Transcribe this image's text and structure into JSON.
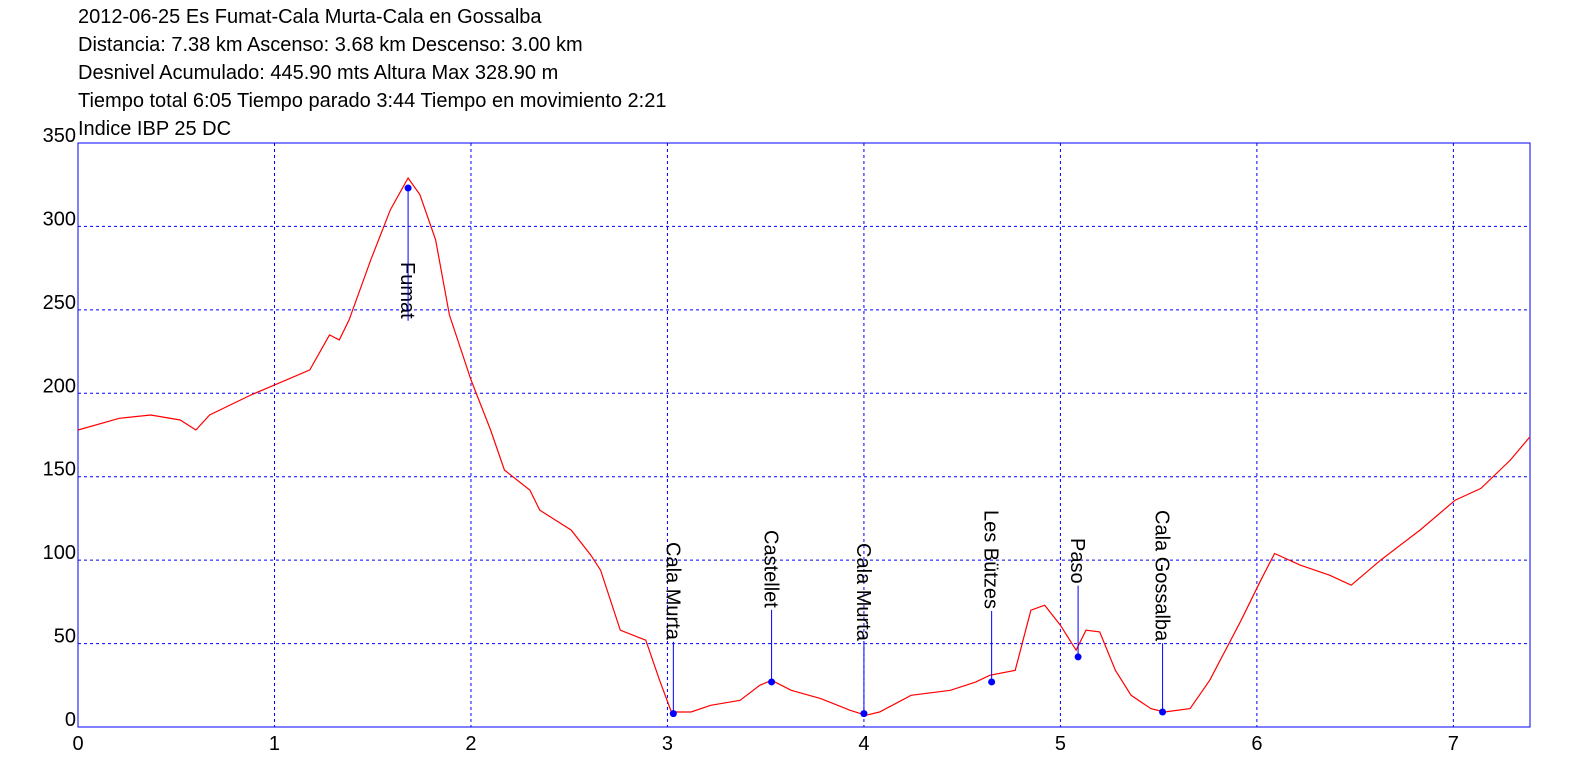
{
  "chart_data": {
    "type": "line",
    "title_lines": [
      "2012-06-25 Es Fumat-Cala Murta-Cala en Gossalba",
      "Distancia: 7.38 km Ascenso: 3.68 km Descenso: 3.00 km",
      "Desnivel Acumulado: 445.90 mts  Altura Max 328.90 m",
      "Tiempo total 6:05 Tiempo parado 3:44 Tiempo en movimiento 2:21",
      "Indice IBP 25 DC"
    ],
    "xlim": [
      0,
      7.39
    ],
    "ylim": [
      0,
      350
    ],
    "xticks": [
      0,
      1,
      2,
      3,
      4,
      5,
      6,
      7
    ],
    "yticks": [
      0,
      50,
      100,
      150,
      200,
      250,
      300,
      350
    ],
    "grid": true,
    "grid_color": "#0000ff",
    "axis_color": "#0000ff",
    "series": [
      {
        "color": "#ff0000",
        "x": [
          0,
          0.21,
          0.37,
          0.52,
          0.6,
          0.67,
          0.88,
          1.08,
          1.18,
          1.28,
          1.33,
          1.38,
          1.49,
          1.59,
          1.68,
          1.74,
          1.82,
          1.89,
          2.0,
          2.1,
          2.17,
          2.3,
          2.35,
          2.51,
          2.61,
          2.66,
          2.76,
          2.89,
          2.96,
          3.02,
          3.12,
          3.22,
          3.37,
          3.47,
          3.53,
          3.63,
          3.78,
          3.93,
          4.01,
          4.08,
          4.24,
          4.44,
          4.57,
          4.64,
          4.77,
          4.85,
          4.92,
          5.0,
          5.08,
          5.13,
          5.2,
          5.28,
          5.36,
          5.46,
          5.53,
          5.66,
          5.76,
          5.92,
          6.02,
          6.09,
          6.22,
          6.37,
          6.48,
          6.63,
          6.83,
          7.01,
          7.14,
          7.29,
          7.39
        ],
        "values": [
          178,
          185,
          187,
          184,
          178,
          187,
          199,
          209,
          214,
          235,
          232,
          244,
          280,
          310,
          329,
          319,
          292,
          247,
          208,
          178,
          154,
          142,
          130,
          118,
          103,
          94,
          58,
          52,
          28,
          9,
          9,
          13,
          16,
          25,
          28,
          22,
          17,
          10,
          7,
          9,
          19,
          22,
          27,
          31,
          34,
          70,
          73,
          61,
          46,
          58,
          57,
          34,
          19,
          11,
          9,
          11,
          28,
          64,
          88,
          104,
          97,
          91,
          85,
          100,
          118,
          136,
          143,
          160,
          174
        ]
      }
    ],
    "waypoints": {
      "color": "#0000ff",
      "names": [
        "Fumat",
        "Cala Murta",
        "Castellet",
        "Cala Murta",
        "Les Bützes",
        "Paso",
        "Cala Gossalba"
      ],
      "x": [
        1.68,
        3.03,
        3.53,
        4.0,
        4.65,
        5.09,
        5.52
      ],
      "values": [
        323,
        8,
        27,
        8,
        27,
        42,
        9
      ]
    }
  }
}
